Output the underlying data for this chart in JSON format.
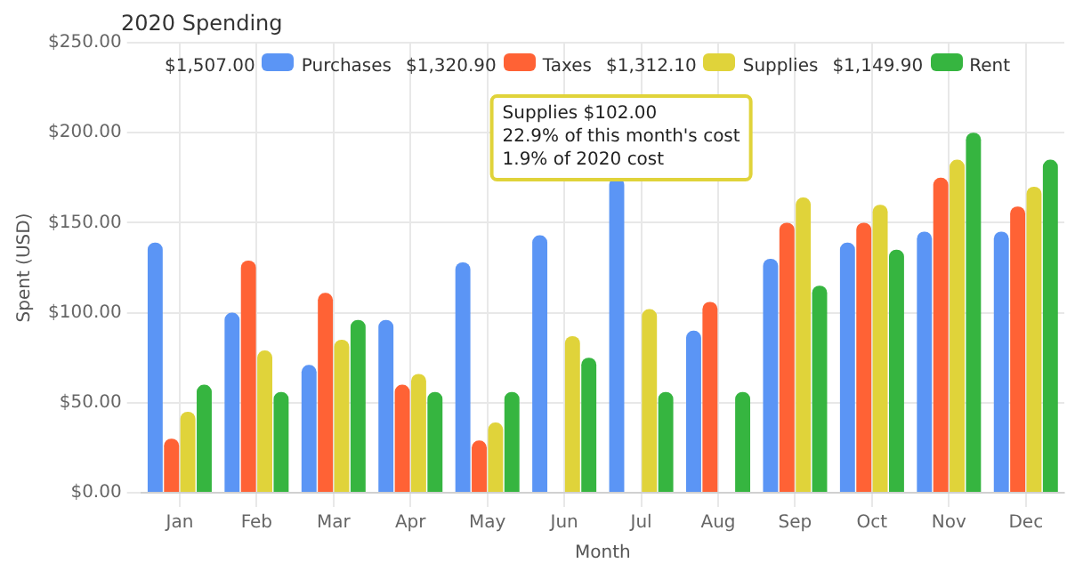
{
  "chart_data": {
    "type": "bar",
    "title": "2020 Spending",
    "xlabel": "Month",
    "ylabel": "Spent (USD)",
    "categories": [
      "Jan",
      "Feb",
      "Mar",
      "Apr",
      "May",
      "Jun",
      "Jul",
      "Aug",
      "Sep",
      "Oct",
      "Nov",
      "Dec"
    ],
    "series": [
      {
        "name": "Purchases",
        "color": "#5b95f5",
        "values": [
          139,
          100,
          71,
          96,
          128,
          143,
          175,
          90,
          130,
          139,
          145,
          145
        ]
      },
      {
        "name": "Taxes",
        "color": "#ff6235",
        "values": [
          30,
          129,
          111,
          60,
          29,
          null,
          null,
          106,
          150,
          150,
          175,
          159
        ]
      },
      {
        "name": "Supplies",
        "color": "#e0d33a",
        "values": [
          45,
          79,
          85,
          66,
          39,
          87,
          102,
          null,
          164,
          160,
          185,
          170
        ]
      },
      {
        "name": "Rent",
        "color": "#36b540",
        "values": [
          60,
          56,
          96,
          56,
          56,
          75,
          56,
          56,
          115,
          135,
          200,
          185
        ]
      }
    ],
    "ylim": [
      0,
      250
    ],
    "yticks": [
      {
        "value": 0,
        "label": "$0.00"
      },
      {
        "value": 50,
        "label": "$50.00"
      },
      {
        "value": 100,
        "label": "$100.00"
      },
      {
        "value": 150,
        "label": "$150.00"
      },
      {
        "value": 200,
        "label": "$200.00"
      },
      {
        "value": 250,
        "label": "$250.00"
      }
    ],
    "grid": true,
    "legend": "top",
    "annotations": [
      "Supplies $102.00\n22.9% of this month's cost\n1.9% of 2020 cost",
      "$1,507.00",
      "$1,320.90",
      "$1,312.10",
      "$1,149.90"
    ]
  }
}
